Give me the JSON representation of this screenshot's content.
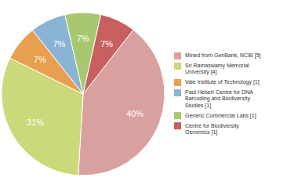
{
  "chart_data": {
    "type": "pie",
    "categories": [
      "Mined from GenBank, NCBI [5]",
      "Sri Ramaswamy Memorial\nUniversity [4]",
      "Vale Institute of Technology [1]",
      "Paul Hebert Centre for DNA\nBarcoding and Biodiversity\nStudies [1]",
      "Generic Commercial Labs [1]",
      "Centre for Biodiversity\nGenomics [1]"
    ],
    "values": [
      40,
      31,
      7,
      7,
      7,
      7
    ],
    "value_labels": [
      "40%",
      "31%",
      "7%",
      "7%",
      "7%",
      "7%"
    ],
    "colors": [
      "#d9a0a0",
      "#ccd97a",
      "#e8a050",
      "#8ab4d4",
      "#a8c870",
      "#c86060"
    ],
    "data_labels": true,
    "legend": "right"
  }
}
